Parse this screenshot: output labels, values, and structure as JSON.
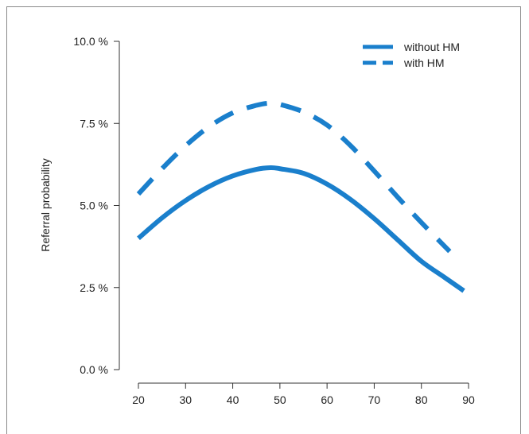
{
  "chart_data": {
    "type": "line",
    "xlabel": "",
    "ylabel": "Referral probability",
    "xlim": [
      20,
      90
    ],
    "ylim": [
      0,
      10
    ],
    "x_ticks": [
      "20",
      "30",
      "40",
      "50",
      "60",
      "70",
      "80",
      "90"
    ],
    "y_ticks": [
      "0.0 %",
      "2.5 %",
      "5.0 %",
      "7.5 %",
      "10.0 %"
    ],
    "y_tick_values": [
      0,
      2.5,
      5,
      7.5,
      10
    ],
    "x_tick_values": [
      20,
      30,
      40,
      50,
      60,
      70,
      80,
      90
    ],
    "legend_position": "top-right",
    "grid": false,
    "series": [
      {
        "name": "without HM",
        "style": "solid",
        "color": "#1a7fcc",
        "x": [
          20,
          25,
          30,
          35,
          40,
          45,
          48,
          50,
          55,
          60,
          65,
          70,
          75,
          80,
          85,
          89
        ],
        "y": [
          4.0,
          4.62,
          5.15,
          5.58,
          5.9,
          6.1,
          6.15,
          6.12,
          5.98,
          5.65,
          5.18,
          4.6,
          3.95,
          3.3,
          2.8,
          2.4
        ]
      },
      {
        "name": "with HM",
        "style": "dashed",
        "color": "#1a7fcc",
        "x": [
          20,
          25,
          30,
          35,
          40,
          45,
          48,
          50,
          55,
          60,
          65,
          70,
          75,
          80,
          86
        ],
        "y": [
          5.35,
          6.12,
          6.82,
          7.4,
          7.82,
          8.05,
          8.12,
          8.08,
          7.85,
          7.45,
          6.82,
          6.05,
          5.25,
          4.48,
          3.6
        ]
      }
    ]
  }
}
